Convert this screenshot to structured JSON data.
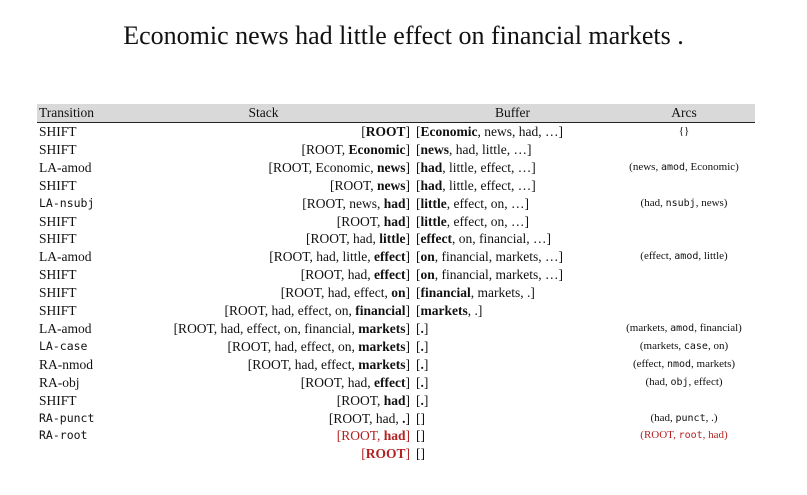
{
  "title": "Economic news had little effect on financial markets .",
  "headers": {
    "transition": "Transition",
    "stack": "Stack",
    "buffer": "Buffer",
    "arcs": "Arcs"
  },
  "rows": [
    {
      "transition": "SHIFT",
      "stack": "[ROOT]",
      "buffer": "[Economic, news, had, …]",
      "arcs": "{}"
    },
    {
      "transition": "SHIFT",
      "stack": "[ROOT, Economic]",
      "buffer": "[news, had, little, …]",
      "arcs": ""
    },
    {
      "transition": "LA-amod",
      "stack": "[ROOT, Economic, news]",
      "buffer": "[had, little, effect, …]",
      "arcs": "(news, amod, Economic)"
    },
    {
      "transition": "SHIFT",
      "stack": "[ROOT, news]",
      "buffer": "[had, little, effect, …]",
      "arcs": ""
    },
    {
      "transition": "LA-nsubj",
      "stack": "[ROOT, news, had]",
      "buffer": "[little, effect, on, …]",
      "arcs": "(had, nsubj, news)"
    },
    {
      "transition": "SHIFT",
      "stack": "[ROOT, had]",
      "buffer": "[little, effect, on, …]",
      "arcs": ""
    },
    {
      "transition": "SHIFT",
      "stack": "[ROOT, had, little]",
      "buffer": "[effect, on, financial, …]",
      "arcs": ""
    },
    {
      "transition": "LA-amod",
      "stack": "[ROOT, had, little, effect]",
      "buffer": "[on, financial, markets, …]",
      "arcs": "(effect, amod, little)"
    },
    {
      "transition": "SHIFT",
      "stack": "[ROOT, had, effect]",
      "buffer": "[on, financial, markets, …]",
      "arcs": ""
    },
    {
      "transition": "SHIFT",
      "stack": "[ROOT, had, effect, on]",
      "buffer": "[financial, markets, .]",
      "arcs": ""
    },
    {
      "transition": "SHIFT",
      "stack": "[ROOT, had, effect, on, financial]",
      "buffer": "[markets, .]",
      "arcs": ""
    },
    {
      "transition": "LA-amod",
      "stack": "[ROOT, had, effect, on, financial, markets]",
      "buffer": "[.]",
      "arcs": "(markets, amod, financial)"
    },
    {
      "transition": "LA-case",
      "stack": "[ROOT, had, effect, on, markets]",
      "buffer": "[.]",
      "arcs": "(markets, case, on)"
    },
    {
      "transition": "RA-nmod",
      "stack": "[ROOT, had, effect, markets]",
      "buffer": "[.]",
      "arcs": "(effect, nmod, markets)"
    },
    {
      "transition": "RA-obj",
      "stack": "[ROOT, had, effect]",
      "buffer": "[.]",
      "arcs": "(had, obj, effect)"
    },
    {
      "transition": "SHIFT",
      "stack": "[ROOT, had]",
      "buffer": "[.]",
      "arcs": ""
    },
    {
      "transition": "RA-punct",
      "stack": "[ROOT, had, .]",
      "buffer": "[]",
      "arcs": "(had, punct, .)"
    },
    {
      "transition": "RA-root",
      "stack": "[ROOT, had]",
      "buffer": "[]",
      "arcs": "(ROOT, root, had)"
    },
    {
      "transition": "",
      "stack": "[ROOT]",
      "buffer": "[]",
      "arcs": ""
    }
  ],
  "colors": {
    "header_bg": "#d9d9d9",
    "highlight": "#b22222"
  }
}
